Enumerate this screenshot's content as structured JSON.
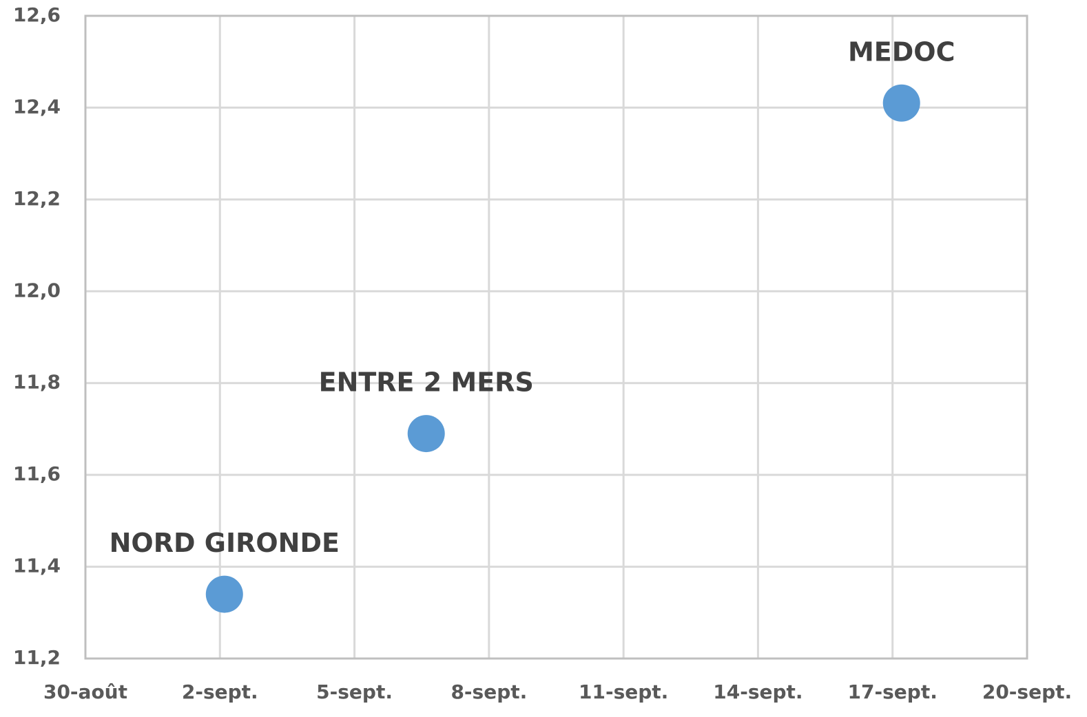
{
  "chart_data": {
    "type": "scatter",
    "series": [
      {
        "color": "#5b9bd5",
        "x": [
          33.1,
          37.6,
          48.2
        ],
        "values": [
          11.34,
          11.69,
          12.41
        ],
        "point_labels": [
          "NORD GIRONDE",
          "ENTRE 2 MERS",
          "MEDOC"
        ]
      }
    ],
    "xlim": [
      30,
      51
    ],
    "xticks": [
      {
        "value": 30,
        "label": "30-août"
      },
      {
        "value": 33,
        "label": "2-sept."
      },
      {
        "value": 36,
        "label": "5-sept."
      },
      {
        "value": 39,
        "label": "8-sept."
      },
      {
        "value": 42,
        "label": "11-sept."
      },
      {
        "value": 45,
        "label": "14-sept."
      },
      {
        "value": 48,
        "label": "17-sept."
      },
      {
        "value": 51,
        "label": "20-sept."
      }
    ],
    "ylim": [
      11.2,
      12.6
    ],
    "yticks": [
      {
        "value": 11.2,
        "label": "11,2"
      },
      {
        "value": 11.4,
        "label": "11,4"
      },
      {
        "value": 11.6,
        "label": "11,6"
      },
      {
        "value": 11.8,
        "label": "11,8"
      },
      {
        "value": 12.0,
        "label": "12,0"
      },
      {
        "value": 12.2,
        "label": "12,2"
      },
      {
        "value": 12.4,
        "label": "12,4"
      },
      {
        "value": 12.6,
        "label": "12,6"
      }
    ],
    "grid": true
  }
}
